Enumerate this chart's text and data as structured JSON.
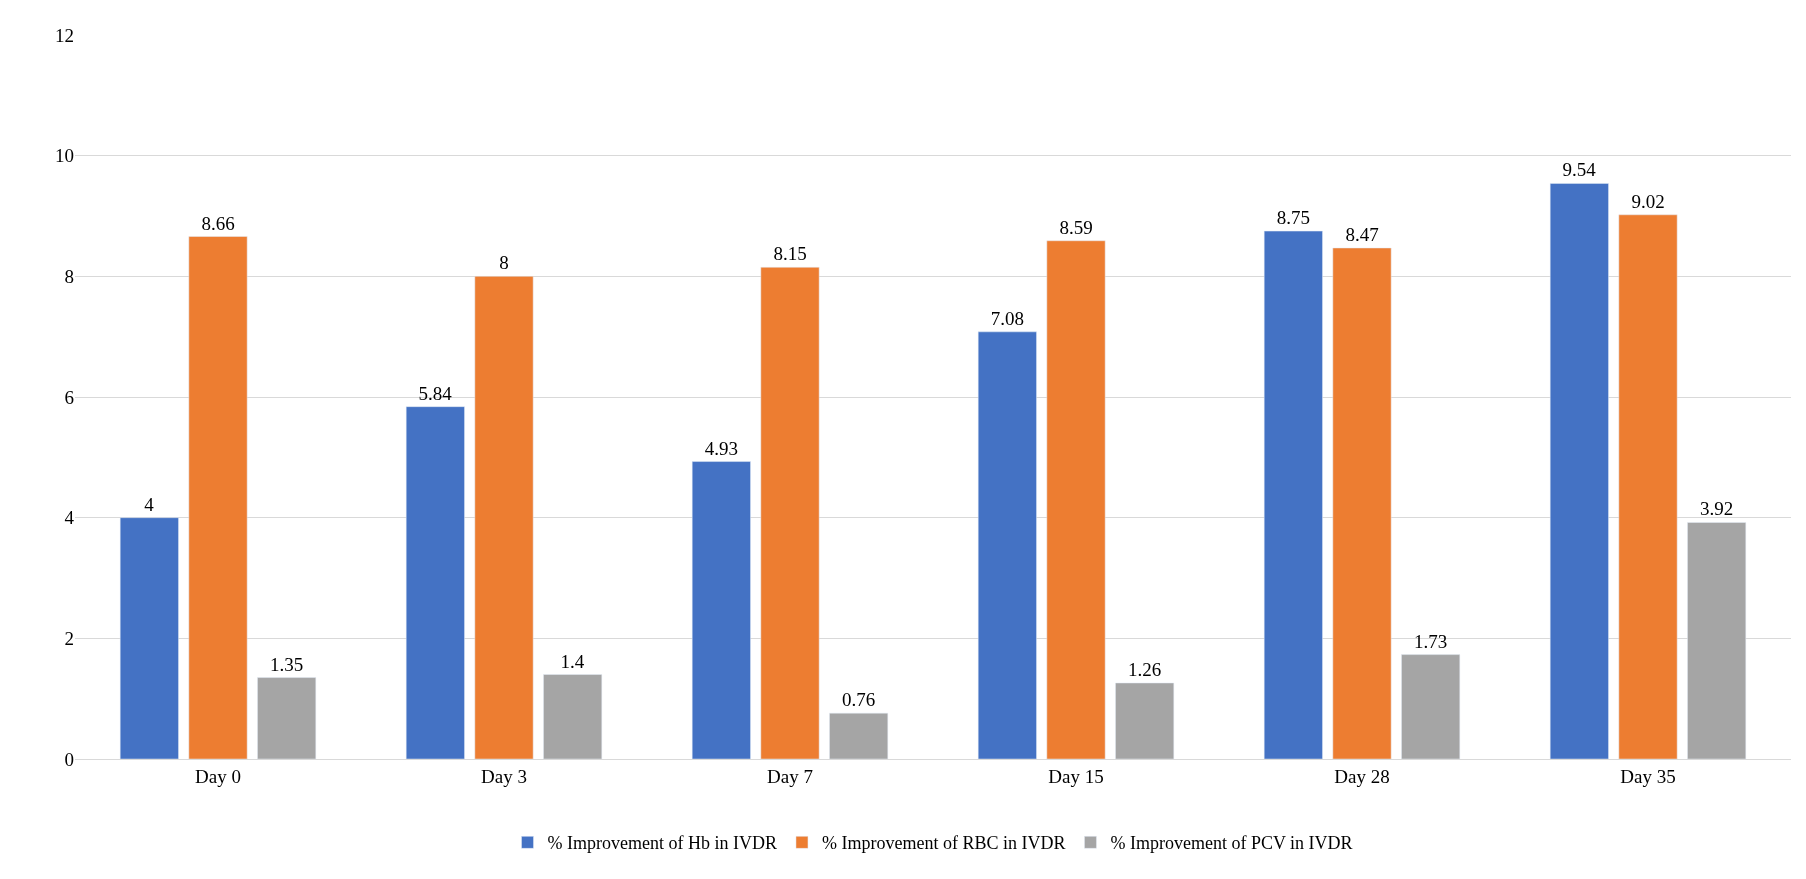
{
  "chart_data": {
    "type": "bar",
    "categories": [
      "Day 0",
      "Day 3",
      "Day 7",
      "Day 15",
      "Day 28",
      "Day 35"
    ],
    "series": [
      {
        "name": "% Improvement of Hb in IVDR",
        "color": "#4472c4",
        "values": [
          4,
          5.84,
          4.93,
          7.08,
          8.75,
          9.54
        ]
      },
      {
        "name": "% Improvement of RBC in IVDR",
        "color": "#ed7d31",
        "values": [
          8.66,
          8,
          8.15,
          8.59,
          8.47,
          9.02
        ]
      },
      {
        "name": "% Improvement of PCV in IVDR",
        "color": "#a5a5a5",
        "values": [
          1.35,
          1.4,
          0.76,
          1.26,
          1.73,
          3.92
        ]
      }
    ],
    "ylim": [
      0,
      12
    ],
    "yticks": [
      0,
      2,
      4,
      6,
      8,
      10,
      12
    ],
    "grid": "y",
    "legend": "bottom",
    "data_labels": true
  }
}
